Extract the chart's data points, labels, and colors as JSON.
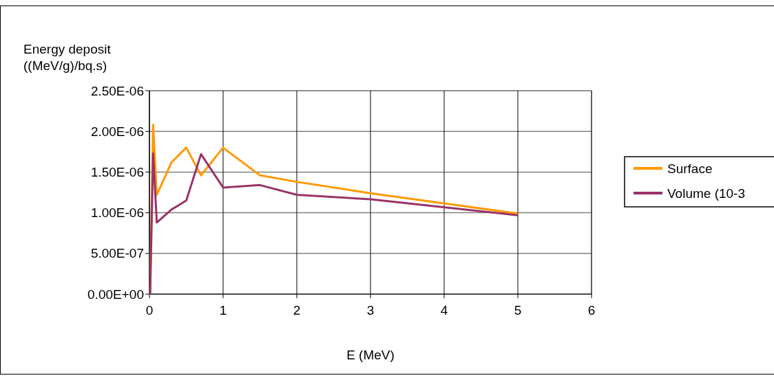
{
  "chart_data": {
    "type": "line",
    "xlabel": "E (MeV)",
    "ylabel": "Energy deposit\n((MeV/g)/bq.s)",
    "x": [
      0.01,
      0.05,
      0.1,
      0.3,
      0.5,
      0.7,
      1,
      1.5,
      2,
      3,
      5
    ],
    "series": [
      {
        "name": "Surface",
        "color": "#ff9900",
        "values": [
          0,
          2.08e-06,
          1.22e-06,
          1.62e-06,
          1.8e-06,
          1.46e-06,
          1.8e-06,
          1.46e-06,
          1.38e-06,
          1.24e-06,
          9.9e-07
        ]
      },
      {
        "name": "Volume (10-3",
        "color": "#993366",
        "values": [
          0,
          1.73e-06,
          8.8e-07,
          1.04e-06,
          1.15e-06,
          1.72e-06,
          1.31e-06,
          1.34e-06,
          1.22e-06,
          1.165e-06,
          9.7e-07
        ]
      }
    ],
    "xlim": [
      0,
      6
    ],
    "xticks": [
      0,
      1,
      2,
      3,
      4,
      5,
      6
    ],
    "ylim": [
      0,
      2.5e-06
    ],
    "yticks": [
      {
        "value": 0,
        "label": "0.00E+00"
      },
      {
        "value": 5e-07,
        "label": "5.00E-07"
      },
      {
        "value": 1e-06,
        "label": "1.00E-06"
      },
      {
        "value": 1.5e-06,
        "label": "1.50E-06"
      },
      {
        "value": 2e-06,
        "label": "2.00E-06"
      },
      {
        "value": 2.5e-06,
        "label": "2.50E-06"
      }
    ],
    "grid": true,
    "legend": "right",
    "marker": "none",
    "line_style": "solid"
  }
}
